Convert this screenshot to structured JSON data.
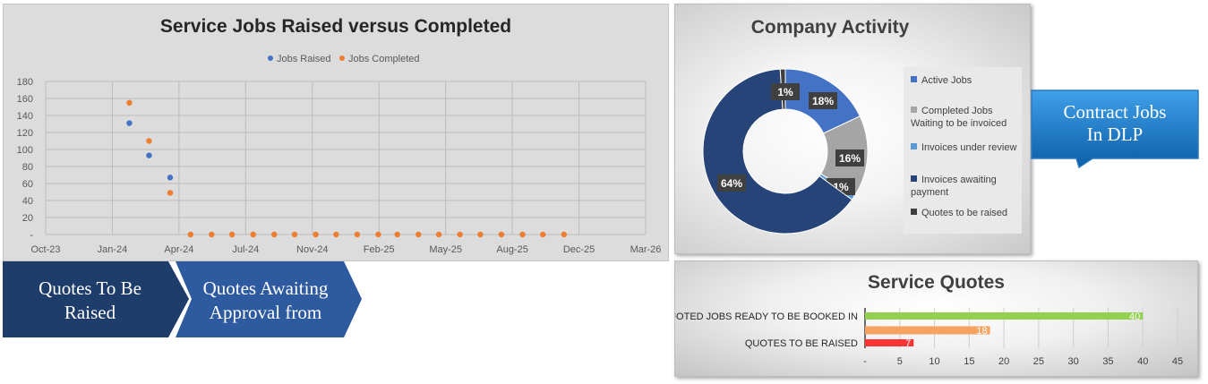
{
  "jobs_chart": {
    "title": "Service Jobs Raised versus Completed",
    "legend": [
      {
        "name": "Jobs Raised",
        "color": "#4472c4"
      },
      {
        "name": "Jobs Completed",
        "color": "#ed7d31"
      }
    ]
  },
  "activity_chart": {
    "title": "Company Activity",
    "legend": [
      {
        "name": "Active Jobs",
        "color": "#4472c4"
      },
      {
        "name": "Completed Jobs Waiting to be invoiced",
        "color": "#a5a5a5"
      },
      {
        "name": "Invoices under review",
        "color": "#5b9bd5"
      },
      {
        "name": "Invoices awaiting payment",
        "color": "#264478"
      },
      {
        "name": "Quotes to be raised",
        "color": "#3f3f3f"
      }
    ]
  },
  "contract_button": {
    "label": "Contract Jobs In DLP"
  },
  "chevrons": [
    {
      "label": "Quotes To Be Raised"
    },
    {
      "label": "Quotes Awaiting Approval from"
    }
  ],
  "quotes_chart": {
    "title": "Service Quotes"
  },
  "chart_data": [
    {
      "type": "scatter",
      "title": "Service Jobs Raised versus Completed",
      "x_ticks": [
        "Oct-23",
        "Jan-24",
        "Apr-24",
        "Jul-24",
        "Nov-24",
        "Feb-25",
        "May-25",
        "Aug-25",
        "Dec-25",
        "Mar-26"
      ],
      "y_ticks": [
        "-",
        "20",
        "40",
        "60",
        "80",
        "100",
        "120",
        "140",
        "160",
        "180"
      ],
      "ylim": [
        0,
        180
      ],
      "xlim": [
        "2023-10-01",
        "2026-03-01"
      ],
      "grid": true,
      "legend_position": "top",
      "series": [
        {
          "name": "Jobs Raised",
          "color": "#4472c4",
          "x": [
            "2024-02-01",
            "2024-03-01",
            "2024-04-01"
          ],
          "y": [
            131,
            93,
            67
          ]
        },
        {
          "name": "Jobs Completed",
          "color": "#ed7d31",
          "x": [
            "2024-02-01",
            "2024-03-01",
            "2024-04-01",
            "2024-05-01",
            "2024-06-01",
            "2024-07-01",
            "2024-08-01",
            "2024-09-01",
            "2024-10-01",
            "2024-11-01",
            "2024-12-01",
            "2025-01-01",
            "2025-02-01",
            "2025-03-01",
            "2025-04-01",
            "2025-05-01",
            "2025-06-01",
            "2025-07-01",
            "2025-08-01",
            "2025-09-01",
            "2025-10-01",
            "2025-11-01"
          ],
          "y": [
            155,
            110,
            49,
            0,
            0,
            0,
            0,
            0,
            0,
            0,
            0,
            0,
            0,
            0,
            0,
            0,
            0,
            0,
            0,
            0,
            0,
            0
          ]
        }
      ]
    },
    {
      "type": "pie",
      "title": "Company Activity",
      "legend_position": "right",
      "categories": [
        "Active Jobs",
        "Completed Jobs Waiting to be invoiced",
        "Invoices under review",
        "Invoices awaiting payment",
        "Quotes to be raised"
      ],
      "values": [
        18,
        16,
        1,
        64,
        1
      ],
      "labels": [
        "18%",
        "16%",
        "1%",
        "64%",
        "1%"
      ],
      "colors": [
        "#4472c4",
        "#a5a5a5",
        "#5b9bd5",
        "#264478",
        "#3f3f3f"
      ]
    },
    {
      "type": "bar",
      "orientation": "horizontal",
      "title": "Service Quotes",
      "categories": [
        "QUOTED JOBS READY TO BE BOOKED IN",
        "",
        "QUOTES TO BE RAISED"
      ],
      "values": [
        40,
        18,
        7
      ],
      "colors": [
        "#92d050",
        "#f4a460",
        "#ff3333"
      ],
      "x_ticks": [
        "-",
        "5",
        "10",
        "15",
        "20",
        "25",
        "30",
        "35",
        "40",
        "45"
      ],
      "xlim": [
        0,
        45
      ],
      "grid": true
    }
  ]
}
